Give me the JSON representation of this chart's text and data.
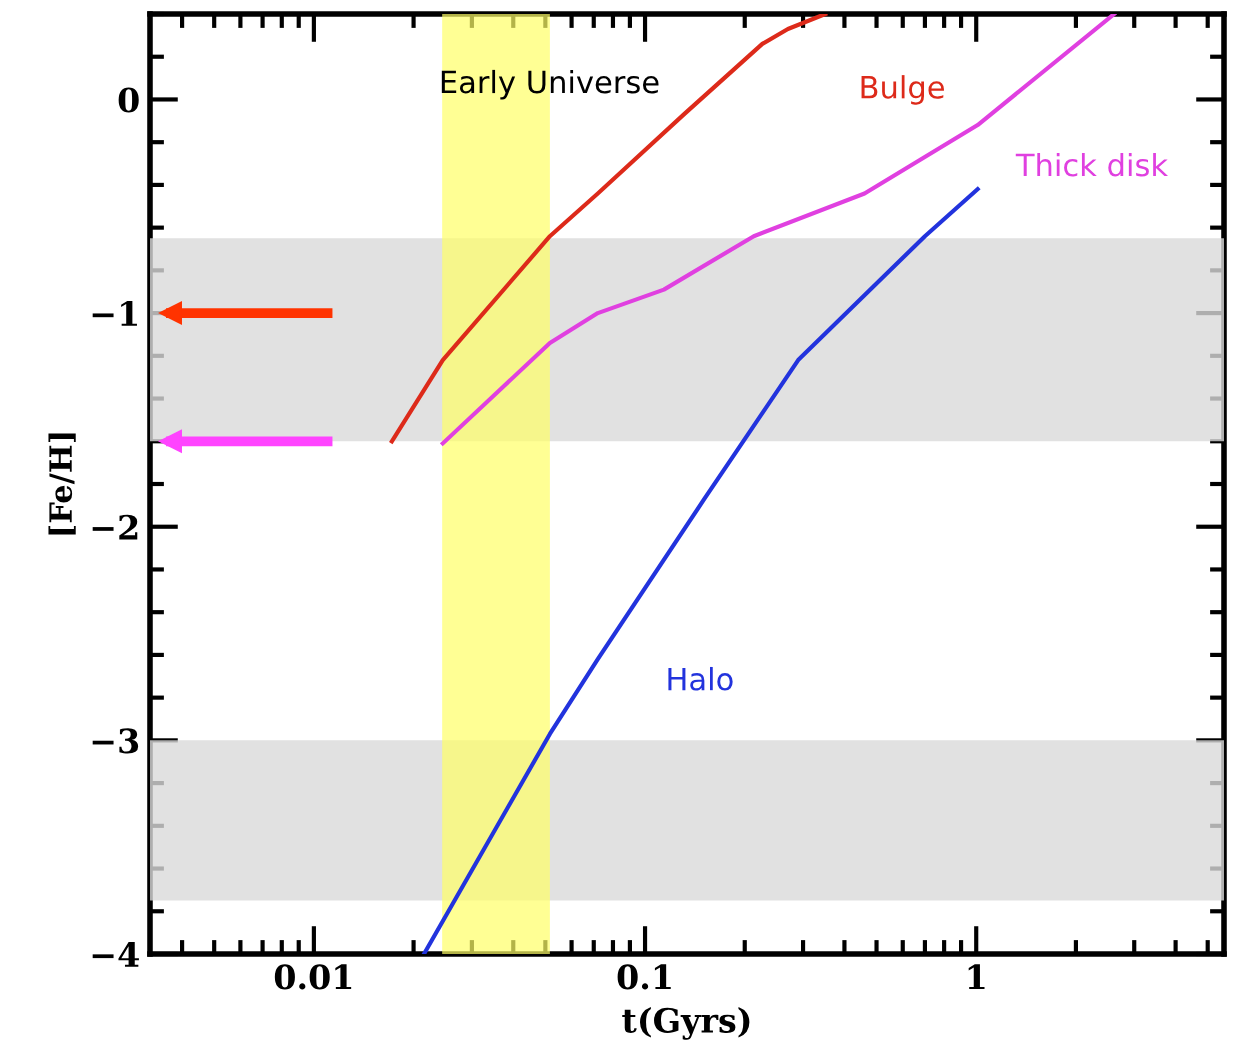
{
  "chart_data": {
    "type": "line",
    "xlabel": "t(Gyrs)",
    "ylabel": "[Fe/H]",
    "log": "x",
    "xlim": [
      0.0032,
      5.6
    ],
    "ylim": [
      -4,
      0.4
    ],
    "xticks": [
      0.01,
      0.1,
      1
    ],
    "yticks": [
      {
        "value": 0,
        "label": "0"
      },
      {
        "value": -1,
        "label": "−1"
      },
      {
        "value": -2,
        "label": "−2"
      },
      {
        "value": -3,
        "label": "−3"
      },
      {
        "value": -4,
        "label": "−4"
      }
    ],
    "grid": false,
    "series": [
      {
        "name": "Bulge",
        "color": "#dd2a1a",
        "x": [
          0.0172,
          0.0245,
          0.0516,
          0.072,
          0.131,
          0.226,
          0.27,
          0.35
        ],
        "values": [
          -1.6,
          -1.22,
          -0.64,
          -0.44,
          -0.07,
          0.26,
          0.33,
          0.4
        ]
      },
      {
        "name": "Thick disk",
        "color": "#e040e0",
        "x": [
          0.0245,
          0.0516,
          0.072,
          0.114,
          0.213,
          0.46,
          1.01,
          2.61
        ],
        "values": [
          -1.61,
          -1.14,
          -1.0,
          -0.89,
          -0.64,
          -0.44,
          -0.12,
          0.4
        ]
      },
      {
        "name": "Halo",
        "color": "#2233dd",
        "x": [
          0.0215,
          0.0516,
          0.072,
          0.151,
          0.2,
          0.29,
          0.7,
          1.01
        ],
        "values": [
          -4.0,
          -2.97,
          -2.62,
          -1.87,
          -1.59,
          -1.22,
          -0.64,
          -0.42
        ]
      },
      {
        "color": "#ff3300",
        "x": [
          0.011,
          0.0037
        ],
        "values": [
          -1,
          -1
        ],
        "marker": "triangle"
      },
      {
        "color": "#ff44ff",
        "x": [
          0.011,
          0.0037
        ],
        "values": [
          -1.6,
          -1.6
        ],
        "marker": "triangle"
      }
    ],
    "bands": [
      {
        "axis": "y",
        "from": -1.6,
        "to": -0.65,
        "color": "#d9d9d9"
      },
      {
        "axis": "y",
        "from": -3.75,
        "to": -3.0,
        "color": "#d9d9d9"
      },
      {
        "axis": "x",
        "from": 0.0244,
        "to": 0.0516,
        "color": "#ffff66",
        "label": "Early Universe"
      }
    ]
  }
}
